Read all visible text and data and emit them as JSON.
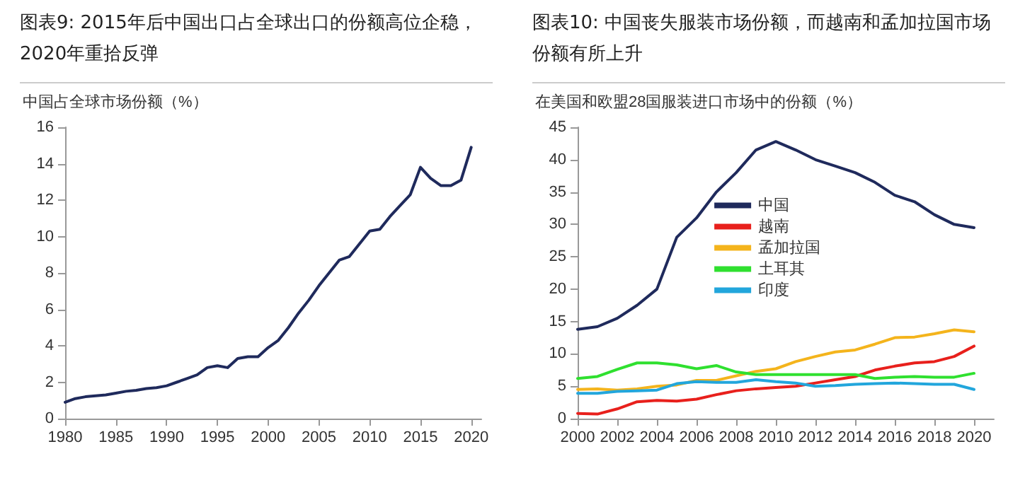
{
  "chart_data": [
    {
      "type": "line",
      "title": "图表9: 2015年后中国出口占全球出口的份额高位企稳，2020年重拾反弹",
      "ylabel": "中国占全球市场份额（%）",
      "x": [
        1980,
        1981,
        1982,
        1983,
        1984,
        1985,
        1986,
        1987,
        1988,
        1989,
        1990,
        1991,
        1992,
        1993,
        1994,
        1995,
        1996,
        1997,
        1998,
        1999,
        2000,
        2001,
        2002,
        2003,
        2004,
        2005,
        2006,
        2007,
        2008,
        2009,
        2010,
        2011,
        2012,
        2013,
        2014,
        2015,
        2016,
        2017,
        2018,
        2019,
        2020
      ],
      "series": [
        {
          "color": "#1f2a5c",
          "values": [
            0.9,
            1.1,
            1.2,
            1.25,
            1.3,
            1.4,
            1.5,
            1.55,
            1.65,
            1.7,
            1.8,
            2.0,
            2.2,
            2.4,
            2.8,
            2.9,
            2.8,
            3.3,
            3.4,
            3.4,
            3.9,
            4.3,
            5.0,
            5.8,
            6.5,
            7.3,
            8.0,
            8.7,
            8.9,
            9.6,
            10.3,
            10.4,
            11.1,
            11.7,
            12.3,
            13.8,
            13.2,
            12.8,
            12.8,
            13.1,
            14.9
          ]
        }
      ],
      "xlim": [
        1980,
        2021
      ],
      "xticks": [
        1980,
        1985,
        1990,
        1995,
        2000,
        2005,
        2010,
        2015,
        2020
      ],
      "ylim": [
        0,
        16
      ],
      "yticks": [
        0,
        2,
        4,
        6,
        8,
        10,
        12,
        14,
        16
      ],
      "grid": false,
      "legend": false,
      "marker": "none",
      "line_style": "solid"
    },
    {
      "type": "line",
      "title": "图表10: 中国丧失服装市场份额，而越南和孟加拉国市场份额有所上升",
      "ylabel": "在美国和欧盟28国服装进口市场中的份额（%）",
      "x": [
        2000,
        2001,
        2002,
        2003,
        2004,
        2005,
        2006,
        2007,
        2008,
        2009,
        2010,
        2011,
        2012,
        2013,
        2014,
        2015,
        2016,
        2017,
        2018,
        2019,
        2020
      ],
      "series": [
        {
          "name": "中国",
          "color": "#1f2a5c",
          "values": [
            13.8,
            14.2,
            15.5,
            17.5,
            20,
            28,
            31,
            35,
            38,
            41.5,
            42.8,
            41.5,
            40,
            39,
            38,
            36.5,
            34.5,
            33.5,
            31.5,
            30,
            29.5
          ]
        },
        {
          "name": "越南",
          "color": "#e8201c",
          "values": [
            0.8,
            0.7,
            1.5,
            2.6,
            2.8,
            2.7,
            3.0,
            3.7,
            4.3,
            4.6,
            4.8,
            5.0,
            5.5,
            6.0,
            6.5,
            7.5,
            8.1,
            8.6,
            8.8,
            9.6,
            11.2
          ]
        },
        {
          "name": "孟加拉国",
          "color": "#f4b41c",
          "values": [
            4.5,
            4.6,
            4.4,
            4.6,
            5.0,
            5.2,
            5.9,
            5.9,
            6.6,
            7.3,
            7.7,
            8.8,
            9.6,
            10.3,
            10.6,
            11.5,
            12.5,
            12.6,
            13.1,
            13.7,
            13.4
          ]
        },
        {
          "name": "土耳其",
          "color": "#2fe02f",
          "values": [
            6.2,
            6.5,
            7.6,
            8.6,
            8.6,
            8.3,
            7.7,
            8.2,
            7.2,
            6.8,
            6.8,
            6.8,
            6.8,
            6.8,
            6.8,
            6.2,
            6.4,
            6.5,
            6.4,
            6.4,
            7.0
          ]
        },
        {
          "name": "印度",
          "color": "#22a6dc",
          "values": [
            3.9,
            3.9,
            4.2,
            4.3,
            4.4,
            5.4,
            5.7,
            5.6,
            5.6,
            6.0,
            5.7,
            5.5,
            5.0,
            5.1,
            5.3,
            5.4,
            5.5,
            5.4,
            5.3,
            5.3,
            4.5
          ]
        }
      ],
      "xlim": [
        2000,
        2021
      ],
      "xticks": [
        2000,
        2002,
        2004,
        2006,
        2008,
        2010,
        2012,
        2014,
        2016,
        2018,
        2020
      ],
      "ylim": [
        0,
        45
      ],
      "yticks": [
        0,
        5,
        10,
        15,
        20,
        25,
        30,
        35,
        40,
        45
      ],
      "grid": false,
      "legend": "center",
      "marker": "none",
      "line_style": "solid"
    }
  ]
}
